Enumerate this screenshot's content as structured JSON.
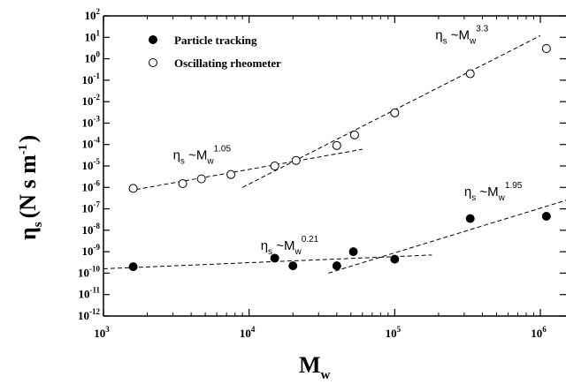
{
  "chart_data": {
    "type": "scatter",
    "x_scale": "log",
    "y_scale": "log",
    "xlim": [
      1000,
      1500000
    ],
    "ylim": [
      1e-12,
      100
    ],
    "x_ticks": [
      {
        "base": "10",
        "exp": "3",
        "value": 1000
      },
      {
        "base": "10",
        "exp": "4",
        "value": 10000
      },
      {
        "base": "10",
        "exp": "5",
        "value": 100000
      },
      {
        "base": "10",
        "exp": "6",
        "value": 1000000
      }
    ],
    "y_ticks": [
      {
        "base": "10",
        "exp": "2",
        "value": 100
      },
      {
        "base": "10",
        "exp": "1",
        "value": 10
      },
      {
        "base": "10",
        "exp": "0",
        "value": 1
      },
      {
        "base": "10",
        "exp": "-1",
        "value": 0.1
      },
      {
        "base": "10",
        "exp": "-2",
        "value": 0.01
      },
      {
        "base": "10",
        "exp": "-3",
        "value": 0.001
      },
      {
        "base": "10",
        "exp": "-4",
        "value": 0.0001
      },
      {
        "base": "10",
        "exp": "-5",
        "value": 1e-05
      },
      {
        "base": "10",
        "exp": "-6",
        "value": 1e-06
      },
      {
        "base": "10",
        "exp": "-7",
        "value": 1e-07
      },
      {
        "base": "10",
        "exp": "-8",
        "value": 1e-08
      },
      {
        "base": "10",
        "exp": "-9",
        "value": 1e-09
      },
      {
        "base": "10",
        "exp": "-10",
        "value": 1e-10
      },
      {
        "base": "10",
        "exp": "-11",
        "value": 1e-11
      },
      {
        "base": "10",
        "exp": "-12",
        "value": 1e-12
      }
    ],
    "xlabel": {
      "main": "M",
      "sub": "w"
    },
    "ylabel": {
      "main": "η",
      "sub": "s",
      "units": "(N s m",
      "units_exp": "-1",
      "units_close": ")"
    },
    "legend": {
      "placement": "top-left",
      "entries": [
        {
          "label": "Particle tracking",
          "marker": "filled-circle"
        },
        {
          "label": "Oscillating rheometer",
          "marker": "open-circle"
        }
      ]
    },
    "series": [
      {
        "name": "Particle tracking",
        "marker": "filled-circle",
        "points": [
          {
            "x": 1600,
            "y": 2e-10
          },
          {
            "x": 15000,
            "y": 5e-10
          },
          {
            "x": 20000,
            "y": 2.2e-10
          },
          {
            "x": 40000,
            "y": 2.2e-10
          },
          {
            "x": 52000,
            "y": 1e-09
          },
          {
            "x": 100000,
            "y": 4.5e-10
          },
          {
            "x": 330000,
            "y": 3.5e-08
          },
          {
            "x": 1100000,
            "y": 4.5e-08
          }
        ]
      },
      {
        "name": "Oscillating rheometer",
        "marker": "open-circle",
        "points": [
          {
            "x": 1600,
            "y": 9e-07
          },
          {
            "x": 3500,
            "y": 1.5e-06
          },
          {
            "x": 4700,
            "y": 2.5e-06
          },
          {
            "x": 7500,
            "y": 4e-06
          },
          {
            "x": 15000,
            "y": 1e-05
          },
          {
            "x": 21000,
            "y": 1.8e-05
          },
          {
            "x": 40000,
            "y": 9e-05
          },
          {
            "x": 53000,
            "y": 0.00028
          },
          {
            "x": 100000,
            "y": 0.003
          },
          {
            "x": 330000,
            "y": 0.2
          },
          {
            "x": 1100000,
            "y": 3
          }
        ]
      }
    ],
    "fit_lines": [
      {
        "from": {
          "x": 1500,
          "y": 7e-07
        },
        "to": {
          "x": 60000,
          "y": 6e-05
        }
      },
      {
        "from": {
          "x": 9000,
          "y": 1e-06
        },
        "to": {
          "x": 1000000,
          "y": 12
        }
      },
      {
        "from": {
          "x": 1000,
          "y": 1.6e-10
        },
        "to": {
          "x": 180000,
          "y": 7e-10
        }
      },
      {
        "from": {
          "x": 35000,
          "y": 1e-10
        },
        "to": {
          "x": 1500000,
          "y": 2.5e-07
        }
      }
    ],
    "annotations": [
      {
        "base": "η",
        "base_sub": "s",
        "mid": " ~M",
        "mid_sub": "w",
        "exp": "3.3",
        "x": 190000,
        "y": 8
      },
      {
        "base": "η",
        "base_sub": "s",
        "mid": " ~M",
        "mid_sub": "w",
        "exp": "1.05",
        "x": 3000,
        "y": 2e-05
      },
      {
        "base": "η",
        "base_sub": "s",
        "mid": " ~M",
        "mid_sub": "w",
        "exp": "1.95",
        "x": 300000,
        "y": 4e-07
      },
      {
        "base": "η",
        "base_sub": "s",
        "mid": " ~M",
        "mid_sub": "w",
        "exp": "0.21",
        "x": 12000,
        "y": 1.2e-09
      }
    ]
  }
}
